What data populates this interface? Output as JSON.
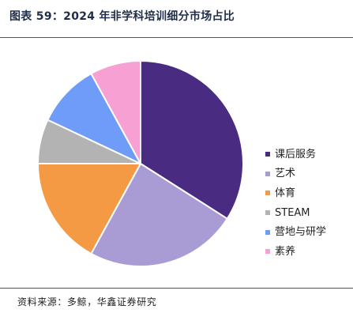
{
  "header": {
    "title": "图表 59：2024 年非学科培训细分市场占比"
  },
  "footer": {
    "source": "资料来源：多鲸，华鑫证券研究"
  },
  "chart_data": {
    "type": "pie",
    "title": "图表 59：2024 年非学科培训细分市场占比",
    "start_angle_deg": 0,
    "direction": "clockwise",
    "legend_position": "right",
    "slices": [
      {
        "label": "课后服务",
        "value": 34,
        "color": "#4a2b82"
      },
      {
        "label": "艺术",
        "value": 24,
        "color": "#a99bd4"
      },
      {
        "label": "体育",
        "value": 17,
        "color": "#f49a45"
      },
      {
        "label": "STEAM",
        "value": 7,
        "color": "#b3b3b3"
      },
      {
        "label": "营地与研学",
        "value": 10,
        "color": "#6e9cf8"
      },
      {
        "label": "素养",
        "value": 8,
        "color": "#f7a0d3"
      }
    ]
  }
}
